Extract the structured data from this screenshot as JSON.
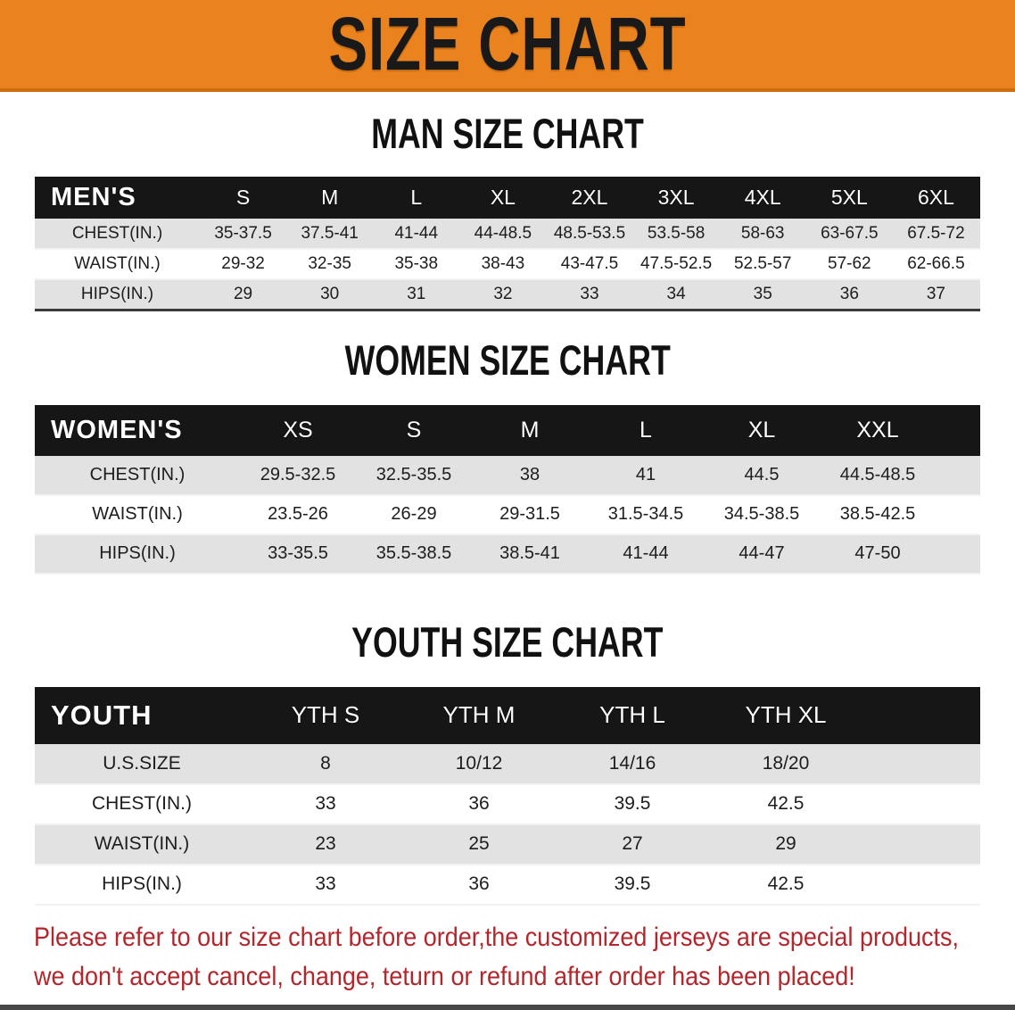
{
  "banner": {
    "title": "SIZE CHART",
    "bg_color": "#EA831E",
    "text_color": "#191919"
  },
  "sections": [
    {
      "heading": "MAN SIZE CHART",
      "table": {
        "header_label": "MEN'S",
        "columns": [
          "S",
          "M",
          "L",
          "XL",
          "2XL",
          "3XL",
          "4XL",
          "5XL",
          "6XL"
        ],
        "rows": [
          {
            "label": "CHEST(IN.)",
            "values": [
              "35-37.5",
              "37.5-41",
              "41-44",
              "44-48.5",
              "48.5-53.5",
              "53.5-58",
              "58-63",
              "63-67.5",
              "67.5-72"
            ]
          },
          {
            "label": "WAIST(IN.)",
            "values": [
              "29-32",
              "32-35",
              "35-38",
              "38-43",
              "43-47.5",
              "47.5-52.5",
              "52.5-57",
              "57-62",
              "62-66.5"
            ]
          },
          {
            "label": "HIPS(IN.)",
            "values": [
              "29",
              "30",
              "31",
              "32",
              "33",
              "34",
              "35",
              "36",
              "37"
            ]
          }
        ]
      }
    },
    {
      "heading": "WOMEN SIZE CHART",
      "table": {
        "header_label": "WOMEN'S",
        "columns": [
          "XS",
          "S",
          "M",
          "L",
          "XL",
          "XXL"
        ],
        "rows": [
          {
            "label": "CHEST(IN.)",
            "values": [
              "29.5-32.5",
              "32.5-35.5",
              "38",
              "41",
              "44.5",
              "44.5-48.5"
            ]
          },
          {
            "label": "WAIST(IN.)",
            "values": [
              "23.5-26",
              "26-29",
              "29-31.5",
              "31.5-34.5",
              "34.5-38.5",
              "38.5-42.5"
            ]
          },
          {
            "label": "HIPS(IN.)",
            "values": [
              "33-35.5",
              "35.5-38.5",
              "38.5-41",
              "41-44",
              "44-47",
              "47-50"
            ]
          }
        ]
      }
    },
    {
      "heading": "YOUTH SIZE CHART",
      "table": {
        "header_label": "YOUTH",
        "columns": [
          "YTH S",
          "YTH M",
          "YTH L",
          "YTH XL"
        ],
        "rows": [
          {
            "label": "U.S.SIZE",
            "values": [
              "8",
              "10/12",
              "14/16",
              "18/20"
            ]
          },
          {
            "label": "CHEST(IN.)",
            "values": [
              "33",
              "36",
              "39.5",
              "42.5"
            ]
          },
          {
            "label": "WAIST(IN.)",
            "values": [
              "23",
              "25",
              "27",
              "29"
            ]
          },
          {
            "label": "HIPS(IN.)",
            "values": [
              "33",
              "36",
              "39.5",
              "42.5"
            ]
          }
        ]
      }
    }
  ],
  "disclaimer": {
    "line1": "Please refer to our size chart before order,the customized jerseys are special products,",
    "line2": "we don't accept cancel, change, teturn or refund after order has been placed!",
    "text_color": "#B3262B"
  }
}
